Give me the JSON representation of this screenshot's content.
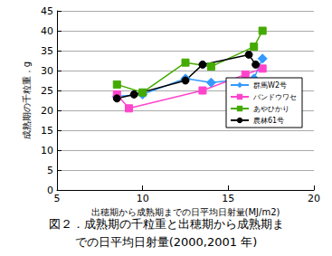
{
  "chart_data": {
    "type": "line",
    "title": "図２．成熟期の千粒重と出穂期から成熟期までの日平均日射量(2000,2001 年)",
    "x_label": "出穂期から成熟期までの日平均日射量(MJ/m2)",
    "y_label": "成熟期の千粒重，g",
    "xlim": [
      5,
      20
    ],
    "xticks": [
      5,
      10,
      15,
      20
    ],
    "ylim": [
      0,
      45
    ],
    "yticks": [
      0,
      5,
      10,
      15,
      20,
      25,
      30,
      35,
      40,
      45
    ],
    "grid": true,
    "legend": "right",
    "series": [
      {
        "name": "群馬W2号",
        "color": "#3399ff",
        "marker": "diamond",
        "x": [
          8.5,
          10.0,
          12.5,
          14.0,
          16.5,
          17.0
        ],
        "values": [
          23.5,
          24.0,
          28.0,
          27.0,
          28.0,
          33.0
        ]
      },
      {
        "name": "バンドウワセ",
        "color": "#ff44cc",
        "marker": "square",
        "x": [
          8.5,
          9.2,
          13.5,
          16.0,
          17.0
        ],
        "values": [
          24.0,
          20.5,
          25.0,
          29.0,
          30.5
        ]
      },
      {
        "name": "あやひかり",
        "color": "#44aa00",
        "marker": "square",
        "x": [
          8.5,
          10.0,
          12.5,
          14.0,
          16.5,
          17.0
        ],
        "values": [
          26.5,
          24.5,
          32.0,
          31.0,
          36.0,
          40.0
        ]
      },
      {
        "name": "農林61号",
        "color": "#000000",
        "marker": "circle",
        "x": [
          8.5,
          9.5,
          12.5,
          13.5,
          16.2,
          16.6
        ],
        "values": [
          23.0,
          24.0,
          27.5,
          31.5,
          34.0,
          31.5
        ]
      }
    ]
  }
}
